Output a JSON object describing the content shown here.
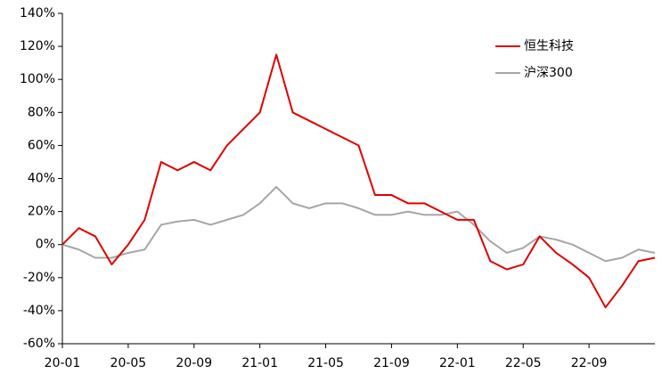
{
  "chart_data": {
    "type": "line",
    "categories": [
      "20-01",
      null,
      null,
      null,
      "20-05",
      null,
      null,
      null,
      "20-09",
      null,
      null,
      null,
      "21-01",
      null,
      null,
      null,
      "21-05",
      null,
      null,
      null,
      "21-09",
      null,
      null,
      null,
      "22-01",
      null,
      null,
      null,
      "22-05",
      null,
      null,
      null,
      "22-09",
      null,
      null,
      null,
      null
    ],
    "series": [
      {
        "name": "恒生科技",
        "color": "#e00000",
        "values": [
          0,
          10,
          5,
          -12,
          0,
          15,
          50,
          45,
          50,
          45,
          60,
          70,
          80,
          115,
          80,
          75,
          70,
          65,
          60,
          30,
          30,
          25,
          25,
          20,
          15,
          15,
          -10,
          -15,
          -12,
          5,
          -5,
          -12,
          -20,
          -38,
          -25,
          -10,
          -8
        ]
      },
      {
        "name": "沪深300",
        "color": "#a6a6a6",
        "values": [
          0,
          -3,
          -8,
          -8,
          -5,
          -3,
          12,
          14,
          15,
          12,
          15,
          18,
          25,
          35,
          25,
          22,
          25,
          25,
          22,
          18,
          18,
          20,
          18,
          18,
          20,
          12,
          2,
          -5,
          -2,
          5,
          3,
          0,
          -5,
          -10,
          -8,
          -3,
          -5
        ]
      }
    ],
    "ylim": [
      -60,
      140
    ],
    "yticks": [
      {
        "value": -60,
        "label": "-60%"
      },
      {
        "value": -40,
        "label": "-40%"
      },
      {
        "value": -20,
        "label": "-20%"
      },
      {
        "value": 0,
        "label": "0%"
      },
      {
        "value": 20,
        "label": "20%"
      },
      {
        "value": 40,
        "label": "40%"
      },
      {
        "value": 60,
        "label": "60%"
      },
      {
        "value": 80,
        "label": "80%"
      },
      {
        "value": 100,
        "label": "100%"
      },
      {
        "value": 120,
        "label": "120%"
      },
      {
        "value": 140,
        "label": "140%"
      }
    ],
    "legend": "top-right"
  }
}
